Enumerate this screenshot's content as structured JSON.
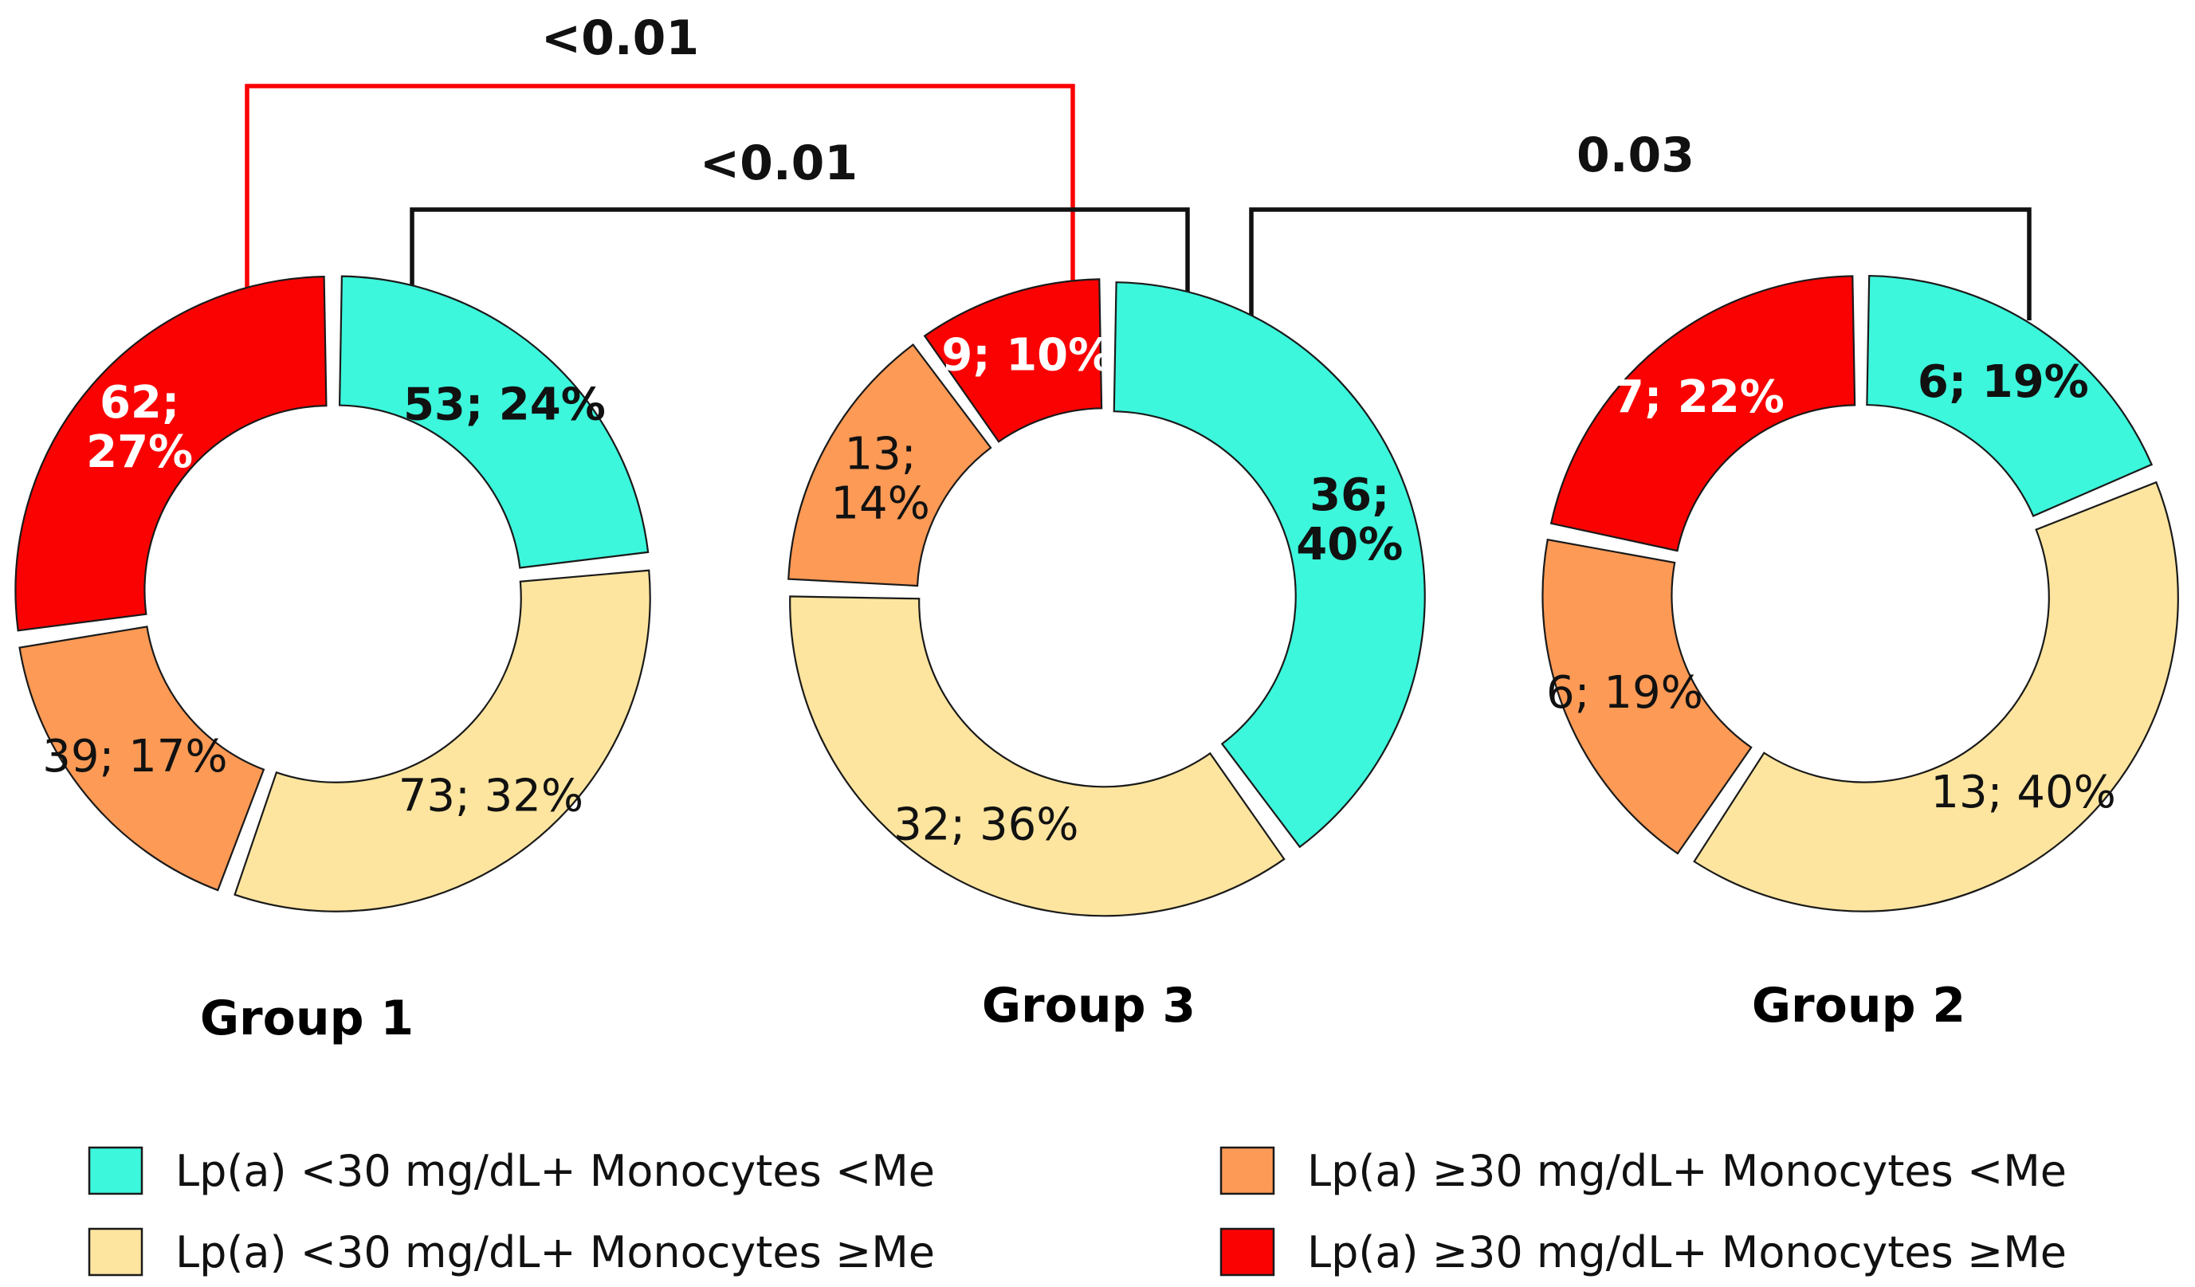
{
  "colors": {
    "cyan": "#3cf7dc",
    "yellow": "#fde59f",
    "orange": "#fc9a56",
    "red": "#fa0202",
    "black": "#111111"
  },
  "chart_data": {
    "type": "pie",
    "variant": "donut",
    "charts": [
      {
        "title": "Group 1",
        "segments": [
          {
            "category": "Lp(a) <30 mg/dL+ Monocytes <Me",
            "n": 53,
            "percent": 24,
            "label": "53; 24%",
            "color": "#3cf7dc"
          },
          {
            "category": "Lp(a) <30 mg/dL+ Monocytes ≥Me",
            "n": 73,
            "percent": 32,
            "label": "73; 32%",
            "color": "#fde59f"
          },
          {
            "category": "Lp(a) ≥30 mg/dL+ Monocytes <Me",
            "n": 39,
            "percent": 17,
            "label": "39; 17%",
            "color": "#fc9a56"
          },
          {
            "category": "Lp(a) ≥30 mg/dL+ Monocytes ≥Me",
            "n": 62,
            "percent": 27,
            "label": "62;\n27%",
            "color": "#fa0202"
          }
        ]
      },
      {
        "title": "Group 3",
        "segments": [
          {
            "category": "Lp(a) <30 mg/dL+ Monocytes <Me",
            "n": 36,
            "percent": 40,
            "label": "36;\n40%",
            "color": "#3cf7dc"
          },
          {
            "category": "Lp(a) <30 mg/dL+ Monocytes ≥Me",
            "n": 32,
            "percent": 36,
            "label": "32; 36%",
            "color": "#fde59f"
          },
          {
            "category": "Lp(a) ≥30 mg/dL+ Monocytes <Me",
            "n": 13,
            "percent": 14,
            "label": "13;\n14%",
            "color": "#fc9a56"
          },
          {
            "category": "Lp(a) ≥30 mg/dL+ Monocytes ≥Me",
            "n": 9,
            "percent": 10,
            "label": "9; 10%",
            "color": "#fa0202"
          }
        ]
      },
      {
        "title": "Group 2",
        "segments": [
          {
            "category": "Lp(a) <30 mg/dL+ Monocytes <Me",
            "n": 6,
            "percent": 19,
            "label": "6; 19%",
            "color": "#3cf7dc"
          },
          {
            "category": "Lp(a) <30 mg/dL+ Monocytes ≥Me",
            "n": 13,
            "percent": 40,
            "label": "13; 40%",
            "color": "#fde59f"
          },
          {
            "category": "Lp(a) ≥30 mg/dL+ Monocytes <Me",
            "n": 6,
            "percent": 19,
            "label": "6; 19%",
            "color": "#fc9a56"
          },
          {
            "category": "Lp(a) ≥30 mg/dL+ Monocytes ≥Me",
            "n": 7,
            "percent": 22,
            "label": "7; 22%",
            "color": "#fa0202"
          }
        ]
      }
    ],
    "comparisons": [
      {
        "from": "Group 1",
        "to": "Group 3",
        "segment": "Lp(a) ≥30 mg/dL+ Monocytes ≥Me",
        "p_value": "<0.01",
        "color": "#fa0202"
      },
      {
        "from": "Group 1",
        "to": "Group 3",
        "segment": "Lp(a) <30 mg/dL+ Monocytes <Me",
        "p_value": "<0.01",
        "color": "#111111"
      },
      {
        "from": "Group 3",
        "to": "Group 2",
        "segment": "Lp(a) <30 mg/dL+ Monocytes <Me",
        "p_value": "0.03",
        "color": "#111111"
      }
    ],
    "legend": [
      {
        "label": "Lp(a) <30 mg/dL+ Monocytes <Me",
        "color": "#3cf7dc"
      },
      {
        "label": "Lp(a) ≥30 mg/dL+ Monocytes <Me",
        "color": "#fc9a56"
      },
      {
        "label": "Lp(a) <30 mg/dL+ Monocytes ≥Me",
        "color": "#fde59f"
      },
      {
        "label": "Lp(a) ≥30 mg/dL+ Monocytes ≥Me",
        "color": "#fa0202"
      }
    ]
  }
}
